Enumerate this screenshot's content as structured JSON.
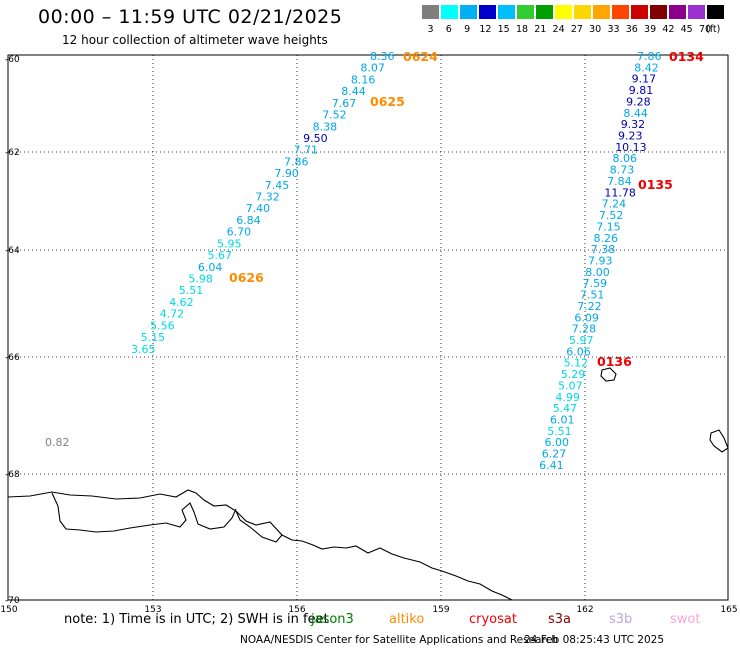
{
  "header": {
    "title": "00:00 – 11:59 UTC 02/21/2025",
    "subtitle": "12 hour collection of altimeter wave heights"
  },
  "color_scale": {
    "labels": [
      "3",
      "6",
      "9",
      "12",
      "15",
      "18",
      "21",
      "24",
      "27",
      "30",
      "33",
      "36",
      "39",
      "42",
      "45",
      "70"
    ],
    "colors": [
      "#7f7f7f",
      "#00ffff",
      "#00b0f0",
      "#0000cd",
      "#00bfff",
      "#32cd32",
      "#00a000",
      "#ffff00",
      "#ffd700",
      "#ffa500",
      "#ff4500",
      "#cc0000",
      "#800000",
      "#8b008b",
      "#9932cc",
      "#000000"
    ],
    "unit": "(ft)"
  },
  "axes": {
    "lat_labels": [
      "-60",
      "-62",
      "-64",
      "-66",
      "-68",
      "-70"
    ],
    "lon_labels": [
      "150",
      "153",
      "156",
      "159",
      "162",
      "165"
    ]
  },
  "passes": {
    "labels": [
      "0624",
      "0625",
      "0626",
      "0134",
      "0135",
      "0136"
    ],
    "colors": {
      "altiko": "#ff8c00",
      "cryosat": "#ee0000"
    }
  },
  "tracks": {
    "track_0624": [
      "8.36",
      "8.07",
      "8.16",
      "8.44",
      "7.67",
      "7.52",
      "8.38",
      "9.50",
      "7.71",
      "7.86",
      "7.90",
      "7.45",
      "7.32",
      "7.40",
      "6.84",
      "6.70",
      "5.95",
      "5.67",
      "6.04",
      "5.98",
      "5.51",
      "4.62",
      "4.72",
      "5.56",
      "5.15",
      "3.65"
    ],
    "track_0134": [
      "7.86",
      "8.42",
      "9.17",
      "9.81",
      "9.28",
      "8.44",
      "9.32",
      "9.23",
      "10.13",
      "8.06",
      "8.73",
      "7.84",
      "11.78",
      "7.24",
      "7.52",
      "7.15",
      "8.26",
      "7.38",
      "7.93",
      "8.00",
      "7.59",
      "7.51",
      "7.22",
      "6.09",
      "7.28",
      "5.97",
      "6.06",
      "5.12",
      "5.29",
      "5.07",
      "4.99",
      "5.47",
      "6.01",
      "5.51",
      "6.00",
      "6.27",
      "6.41"
    ],
    "lone_value": "0.82"
  },
  "footer": {
    "note": "note:  1) Time is in UTC;  2) SWH is in feet",
    "legend": [
      {
        "name": "jason3",
        "color": "#008000"
      },
      {
        "name": "altiko",
        "color": "#ff8c00"
      },
      {
        "name": "cryosat",
        "color": "#ee0000"
      },
      {
        "name": "s3a",
        "color": "#8b0000"
      },
      {
        "name": "s3b",
        "color": "#b9a7e0"
      },
      {
        "name": "swot",
        "color": "#f4a6d7"
      }
    ],
    "credit": "NOAA/NESDIS Center for Satellite Applications and Research",
    "timestamp": "24 Feb 08:25:43 UTC 2025"
  }
}
